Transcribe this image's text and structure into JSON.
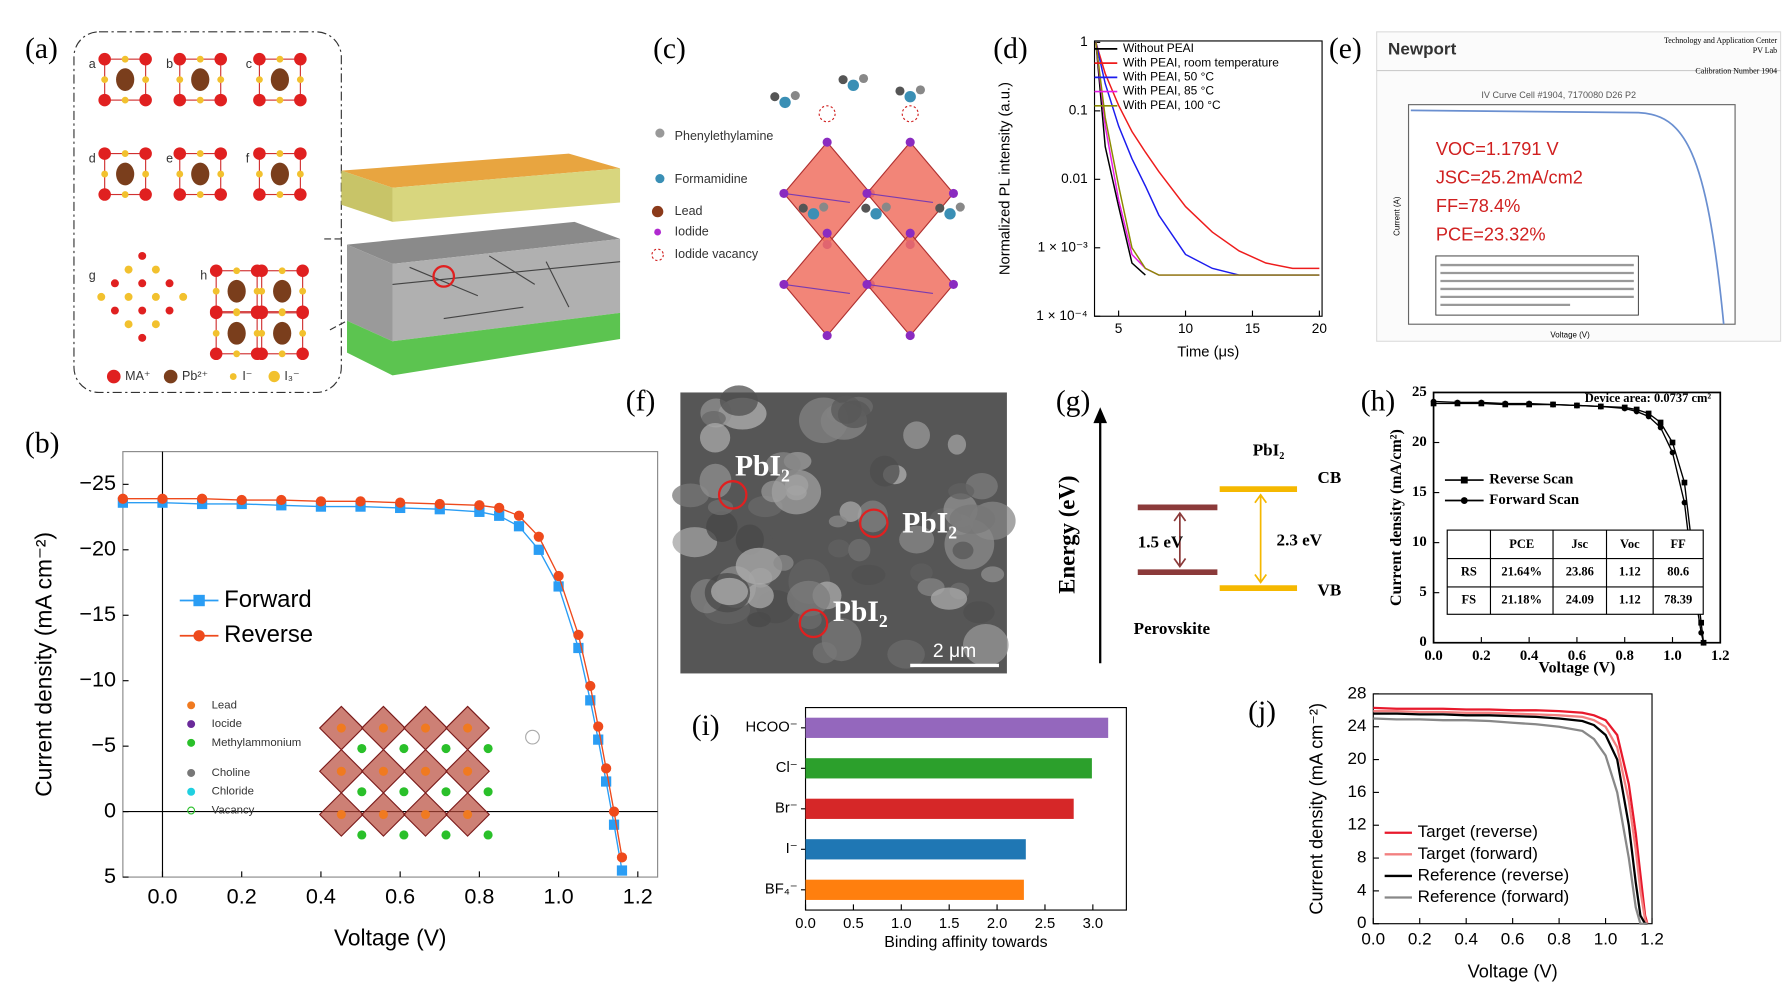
{
  "panel_labels": [
    "(a)",
    "(b)",
    "(c)",
    "(d)",
    "(e)",
    "(f)",
    "(g)",
    "(h)",
    "(i)",
    "(j)"
  ],
  "panel_a": {
    "sublabels": [
      "a",
      "b",
      "c",
      "d",
      "e",
      "f",
      "g",
      "h"
    ],
    "legend": [
      "MA⁺",
      "Pb²⁺",
      "I⁻",
      "I₃⁻"
    ]
  },
  "panel_c": {
    "legend": [
      "Phenylethylamine",
      "Formamidine",
      "Lead",
      "Iodide",
      "Iodide vacancy"
    ]
  },
  "panel_e": {
    "logo": "Newport",
    "header": [
      "Technology and Application Center",
      "PV Lab",
      "Calibration Number 1904"
    ],
    "plot_title": "IV Curve Cell #1904, 7170080 D26 P2",
    "results": [
      "VOC=1.1791 V",
      "JSC=25.2mA/cm2",
      "FF=78.4%",
      "PCE=23.32%"
    ],
    "xlabel": "Voltage (V)",
    "ylabel": "Current (A)"
  },
  "panel_f": {
    "labels": [
      "PbI₂",
      "PbI₂",
      "PbI₂"
    ],
    "scale_bar": "2 μm"
  },
  "panel_g": {
    "axis": "Energy (eV)",
    "material_right": "PbI₂",
    "band_top": "CB",
    "band_bottom": "VB",
    "gap_left": "1.5 eV",
    "gap_right": "2.3 eV",
    "material_left": "Perovskite"
  },
  "chart_data": [
    {
      "type": "line",
      "xlabel": "Voltage (V)",
      "ylabel": "Current density (mA cm⁻²)",
      "x": [
        -0.1,
        0,
        0.1,
        0.2,
        0.3,
        0.4,
        0.5,
        0.6,
        0.7,
        0.8,
        0.85,
        0.9,
        0.95,
        1.0,
        1.05,
        1.08,
        1.1,
        1.12,
        1.14,
        1.16
      ],
      "series": [
        {
          "name": "Forward",
          "color": "#2a9df4",
          "marker": "square",
          "values": [
            -23.6,
            -23.6,
            -23.5,
            -23.5,
            -23.4,
            -23.3,
            -23.3,
            -23.2,
            -23.1,
            -22.9,
            -22.6,
            -21.8,
            -20.0,
            -17.2,
            -12.5,
            -8.5,
            -5.5,
            -2.3,
            1.0,
            4.5
          ]
        },
        {
          "name": "Reverse",
          "color": "#ee4a1c",
          "marker": "circle",
          "values": [
            -23.9,
            -23.9,
            -23.9,
            -23.8,
            -23.8,
            -23.7,
            -23.7,
            -23.6,
            -23.5,
            -23.4,
            -23.2,
            -22.6,
            -21.0,
            -18.0,
            -13.5,
            -9.6,
            -6.5,
            -3.3,
            0,
            3.5
          ]
        }
      ],
      "xlim": [
        -0.1,
        1.25
      ],
      "ylim": [
        5,
        -27.5
      ],
      "xticks": [
        {
          "value": 0,
          "label": "0.0"
        },
        0.2,
        0.4,
        0.6,
        0.8,
        {
          "value": 1,
          "label": "1.0"
        },
        1.2
      ],
      "yticks": [
        {
          "value": -25,
          "label": "−25"
        },
        {
          "value": -20,
          "label": "−20"
        },
        {
          "value": -15,
          "label": "−15"
        },
        {
          "value": -10,
          "label": "−10"
        },
        {
          "value": -5,
          "label": "−5"
        },
        0,
        5
      ],
      "zero_lines": true,
      "legend": "center-left",
      "inset_labels": [
        "Lead",
        "Iocide",
        "Methylammonium",
        "Choline",
        "Chloride",
        "Vacancy"
      ]
    },
    {
      "type": "line",
      "xlabel": "Time (μs)",
      "ylabel": "Normalized PL intensity (a.u.)",
      "log_y": true,
      "x": [
        3.3,
        4,
        5,
        6,
        7,
        8,
        10,
        12,
        14,
        16,
        18,
        20
      ],
      "series": [
        {
          "name": "Without PEAI",
          "color": "#000000",
          "values": [
            1,
            0.03,
            0.004,
            0.0006,
            0.0004,
            null,
            null,
            null,
            null,
            null,
            null,
            null
          ]
        },
        {
          "name": "With PEAI, room temperature",
          "color": "#ee1c1c",
          "values": [
            1,
            0.35,
            0.12,
            0.05,
            0.025,
            0.013,
            0.004,
            0.0017,
            0.0009,
            0.0006,
            0.0005,
            0.0005
          ]
        },
        {
          "name": "With PEAI, 50 °C",
          "color": "#1c1cee",
          "values": [
            1,
            0.25,
            0.06,
            0.02,
            0.008,
            0.003,
            0.0008,
            0.0005,
            0.0004,
            0.0004,
            0.0004,
            0.0004
          ]
        },
        {
          "name": "With PEAI, 85 °C",
          "color": "#e61ce6",
          "values": [
            1,
            0.06,
            0.005,
            0.0008,
            0.0005,
            0.0004,
            0.0004,
            0.0004,
            0.0004,
            0.0004,
            0.0004,
            0.0004
          ]
        },
        {
          "name": "With PEAI, 100 °C",
          "color": "#8b8b00",
          "values": [
            1,
            0.08,
            0.008,
            0.001,
            0.0005,
            0.0004,
            0.0004,
            0.0004,
            0.0004,
            0.0004,
            0.0004,
            0.0004
          ]
        }
      ],
      "xlim": [
        3.2,
        20.2
      ],
      "ylim": [
        0.0001,
        1.05
      ],
      "xticks": [
        5,
        10,
        15,
        20
      ],
      "yticks": [
        1,
        0.1,
        0.01,
        {
          "value": 0.001,
          "label": "1 × 10⁻³"
        },
        {
          "value": 0.0001,
          "label": "1 × 10⁻⁴"
        }
      ],
      "legend": "upper-right"
    },
    {
      "type": "line",
      "xlabel": "Voltage (V)",
      "ylabel": "Current density (mA/cm²)",
      "annotation": "Device area: 0.0737 cm²",
      "x": [
        0,
        0.1,
        0.2,
        0.3,
        0.4,
        0.5,
        0.6,
        0.7,
        0.8,
        0.85,
        0.9,
        0.95,
        1.0,
        1.05,
        1.08,
        1.1,
        1.12,
        1.13
      ],
      "series": [
        {
          "name": "Reverse Scan",
          "color": "#000000",
          "marker": "square",
          "values": [
            23.9,
            23.9,
            23.9,
            23.8,
            23.8,
            23.8,
            23.7,
            23.6,
            23.5,
            23.3,
            22.9,
            22,
            20,
            16,
            10,
            6,
            2,
            0
          ]
        },
        {
          "name": "Forward Scan",
          "color": "#000000",
          "marker": "circle",
          "values": [
            24.1,
            24.0,
            24.0,
            23.9,
            23.9,
            23.8,
            23.7,
            23.6,
            23.4,
            23.1,
            22.6,
            21.5,
            19,
            14,
            8,
            4,
            1,
            0
          ]
        }
      ],
      "xlim": [
        0,
        1.2
      ],
      "ylim": [
        0,
        25
      ],
      "xticks": [
        {
          "value": 0,
          "label": "0.0"
        },
        0.2,
        0.4,
        0.6,
        0.8,
        {
          "value": 1,
          "label": "1.0"
        },
        1.2
      ],
      "yticks": [
        0,
        5,
        10,
        15,
        20,
        25
      ],
      "legend": "center-left",
      "table": {
        "header": [
          "PCE",
          "Jsc",
          "Voc",
          "FF"
        ],
        "rows": [
          [
            "RS",
            "21.64%",
            "23.86",
            "1.12",
            "80.6"
          ],
          [
            "FS",
            "21.18%",
            "24.09",
            "1.12",
            "78.39"
          ]
        ]
      }
    },
    {
      "type": "bar",
      "orientation": "horizontal",
      "xlabel": "Binding affinity towards",
      "categories": [
        "HCOO⁻",
        "Cl⁻",
        "Br⁻",
        "I⁻",
        "BF₄⁻"
      ],
      "values": [
        3.16,
        2.99,
        2.8,
        2.3,
        2.28
      ],
      "colors": [
        "#9467bd",
        "#2ca02c",
        "#d62728",
        "#1f77b4",
        "#ff7f0e"
      ],
      "xlim": [
        0,
        3.35
      ],
      "xticks": [
        {
          "value": 0,
          "label": "0.0"
        },
        0.5,
        {
          "value": 1,
          "label": "1.0"
        },
        1.5,
        {
          "value": 2,
          "label": "2.0"
        },
        2.5,
        {
          "value": 3,
          "label": "3.0"
        }
      ]
    },
    {
      "type": "line",
      "xlabel": "Voltage (V)",
      "ylabel": "Current density (mA cm⁻²)",
      "x": [
        0,
        0.1,
        0.2,
        0.3,
        0.4,
        0.5,
        0.6,
        0.7,
        0.8,
        0.9,
        0.95,
        1.0,
        1.05,
        1.1,
        1.13,
        1.15,
        1.17,
        1.18
      ],
      "series": [
        {
          "name": "Target (reverse)",
          "color": "#e8192c",
          "values": [
            26.3,
            26.2,
            26.2,
            26.2,
            26.1,
            26.1,
            26.0,
            26.0,
            25.9,
            25.7,
            25.4,
            24.8,
            23,
            17,
            11,
            6,
            1,
            0
          ]
        },
        {
          "name": "Target (forward)",
          "color": "#f28080",
          "values": [
            25.9,
            25.9,
            25.8,
            25.8,
            25.7,
            25.7,
            25.6,
            25.5,
            25.4,
            25.2,
            24.8,
            24,
            21.5,
            15,
            9,
            4,
            0.5,
            0
          ]
        },
        {
          "name": "Reference (reverse)",
          "color": "#000000",
          "values": [
            25.6,
            25.6,
            25.5,
            25.5,
            25.4,
            25.4,
            25.3,
            25.2,
            25.0,
            24.7,
            24.2,
            23,
            20,
            12,
            5,
            1,
            0,
            0
          ]
        },
        {
          "name": "Reference (forward)",
          "color": "#888888",
          "values": [
            25.0,
            24.9,
            24.9,
            24.8,
            24.8,
            24.7,
            24.5,
            24.3,
            24.0,
            23.5,
            22.5,
            20.5,
            16,
            8,
            2,
            0,
            0,
            0
          ]
        }
      ],
      "xlim": [
        0,
        1.2
      ],
      "ylim": [
        0,
        28
      ],
      "xticks": [
        {
          "value": 0,
          "label": "0.0"
        },
        0.2,
        0.4,
        0.6,
        0.8,
        {
          "value": 1,
          "label": "1.0"
        },
        1.2
      ],
      "yticks": [
        0,
        4,
        8,
        12,
        16,
        20,
        24,
        28
      ],
      "legend": "lower-left"
    }
  ]
}
